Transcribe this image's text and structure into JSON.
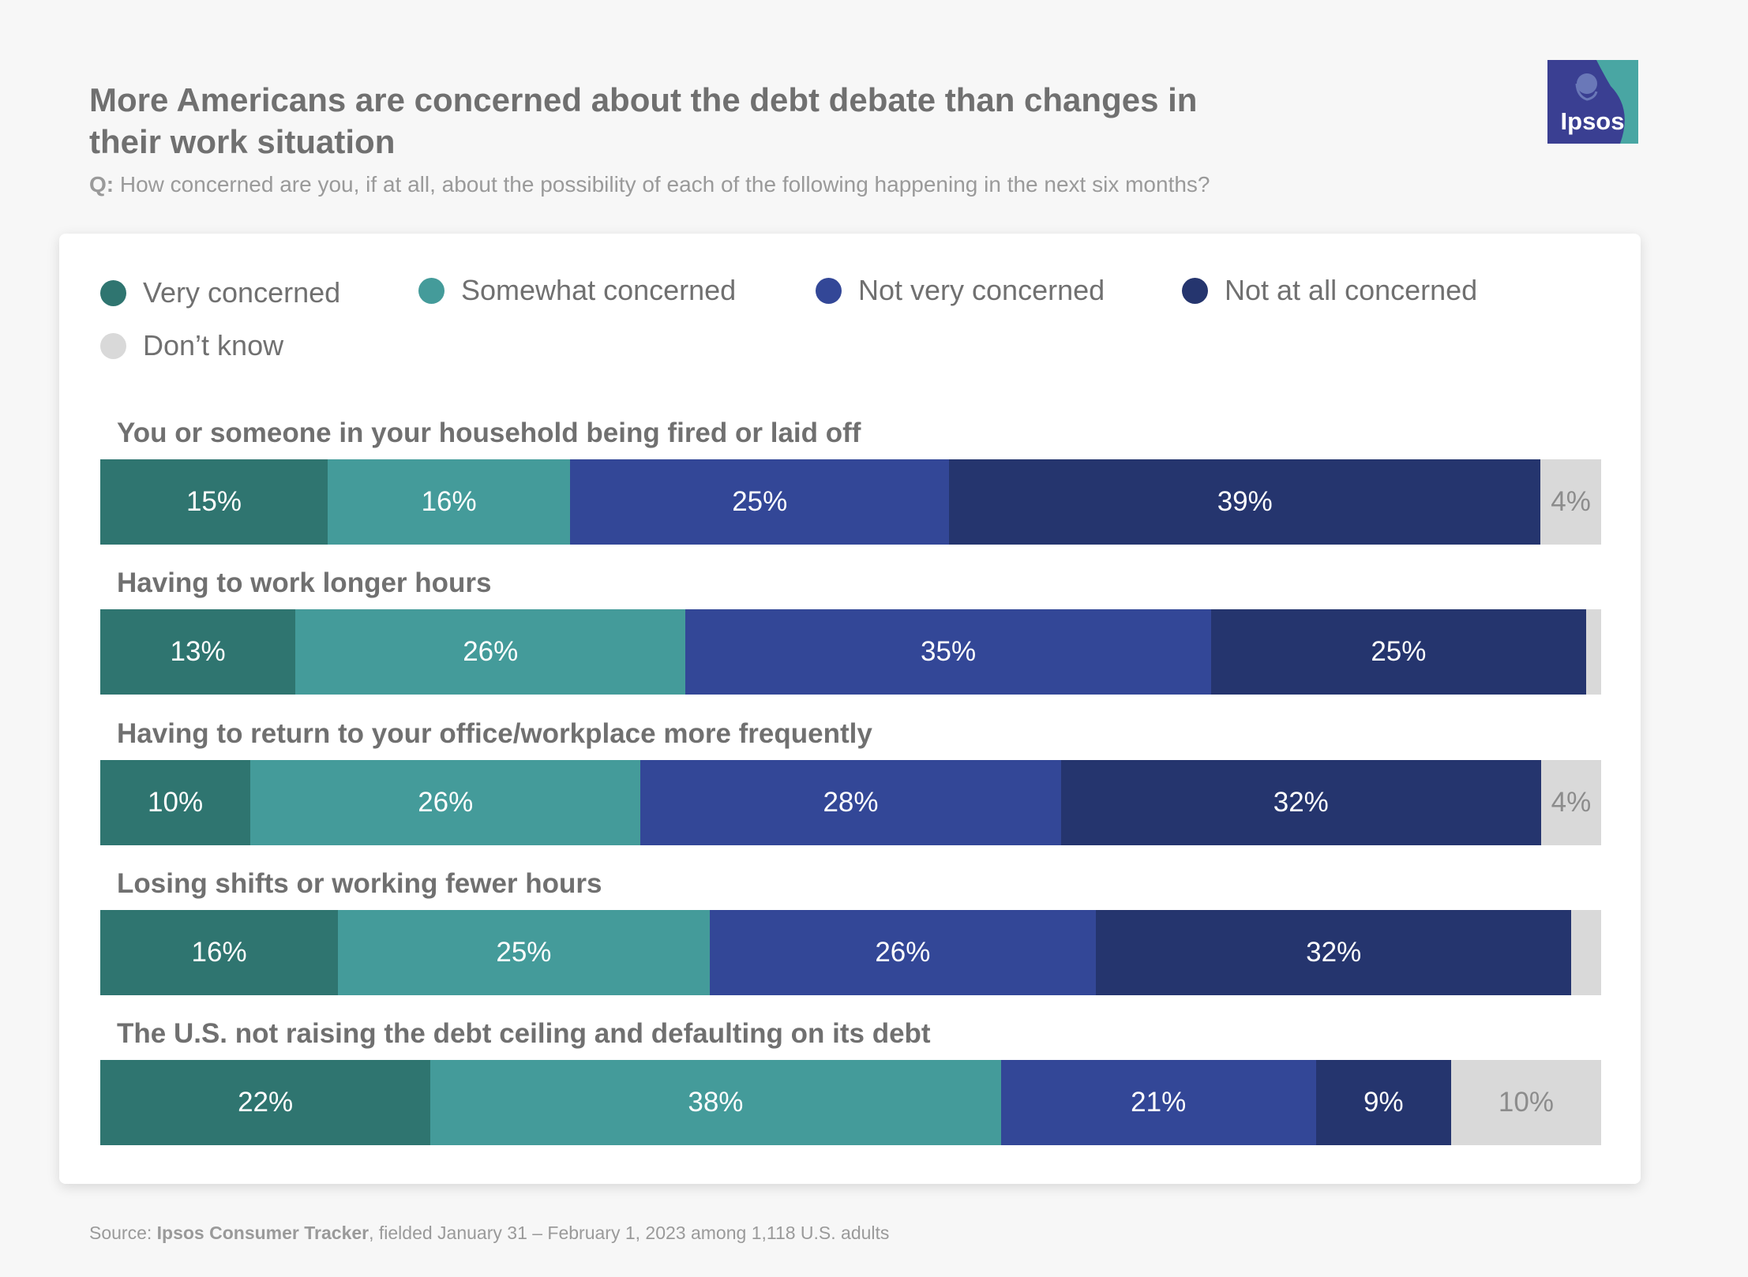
{
  "title": "More Americans are concerned about the debt debate than changes in their work situation",
  "question": {
    "label": "Q:",
    "text": " How concerned are you, if at all, about the possibility of each of the following happening in the next six months?"
  },
  "logo": {
    "text": "Ipsos",
    "icon": "ipsos-logo-icon"
  },
  "source": {
    "prefix": "Source: ",
    "name": "Ipsos Consumer Tracker",
    "suffix": ", fielded January 31 – February 1, 2023 among 1,118 U.S. adults"
  },
  "chart_data": {
    "type": "bar",
    "orientation": "horizontal-stacked-100",
    "legend_placement": "top",
    "categories": [
      "You or someone in your household being fired or laid off",
      "Having to work longer hours",
      "Having to return to your office/workplace more frequently",
      "Losing shifts or working fewer hours",
      "The U.S. not raising the debt ceiling and defaulting on its debt"
    ],
    "series": [
      {
        "name": "Very concerned",
        "color": "#2f7570",
        "values": [
          15,
          13,
          10,
          16,
          22
        ]
      },
      {
        "name": "Somewhat concerned",
        "color": "#449b9a",
        "values": [
          16,
          26,
          26,
          25,
          38
        ]
      },
      {
        "name": "Not very concerned",
        "color": "#334797",
        "values": [
          25,
          35,
          28,
          26,
          21
        ]
      },
      {
        "name": "Not at all concerned",
        "color": "#25356e",
        "values": [
          39,
          25,
          32,
          32,
          9
        ]
      },
      {
        "name": "Don’t know",
        "color": "#d9d9d9",
        "values": [
          4,
          1,
          4,
          2,
          10
        ]
      }
    ],
    "labels": [
      [
        "15%",
        "16%",
        "25%",
        "39%",
        "4%"
      ],
      [
        "13%",
        "26%",
        "35%",
        "25%",
        ""
      ],
      [
        "10%",
        "26%",
        "28%",
        "32%",
        "4%"
      ],
      [
        "16%",
        "25%",
        "26%",
        "32%",
        ""
      ],
      [
        "22%",
        "38%",
        "21%",
        "9%",
        "10%"
      ]
    ]
  }
}
